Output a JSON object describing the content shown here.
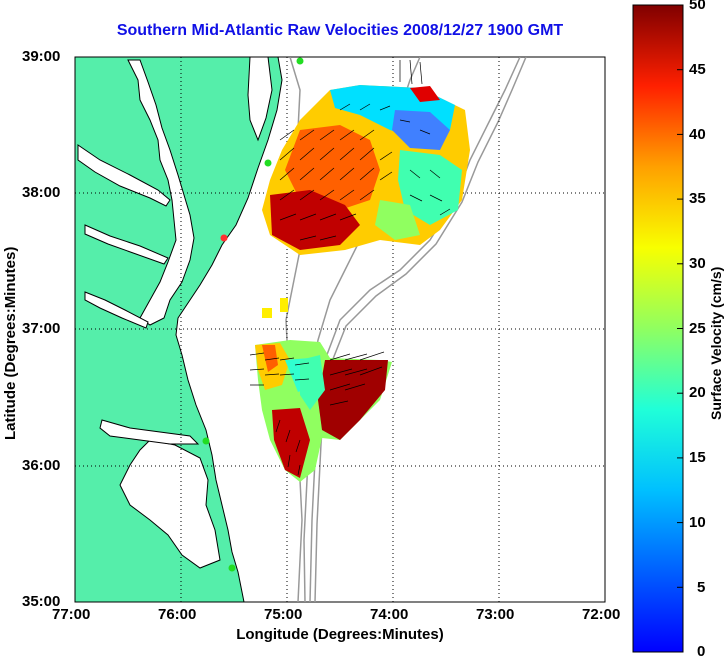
{
  "title": "Southern Mid-Atlantic Raw Velocities 2008/12/27 1900 GMT",
  "axes": {
    "xlabel": "Longitude (Degrees:Minutes)",
    "ylabel": "Latitude (Degrees:Minutes)",
    "xticks": [
      "77:00",
      "76:00",
      "75:00",
      "74:00",
      "73:00",
      "72:00"
    ],
    "yticks": [
      "39:00",
      "38:00",
      "37:00",
      "36:00",
      "35:00"
    ]
  },
  "colorbar": {
    "label": "Surface Velocity (cm/s)",
    "ticks": [
      "50",
      "45",
      "40",
      "35",
      "30",
      "25",
      "20",
      "15",
      "10",
      "5",
      "0"
    ],
    "min": 0,
    "max": 50,
    "colormap": "jet"
  },
  "colors": {
    "title": "#1010e6",
    "land": "#55eeaa",
    "coastline": "#000000",
    "bathymetry": "#999999",
    "station_marker": "#22dd22"
  }
}
